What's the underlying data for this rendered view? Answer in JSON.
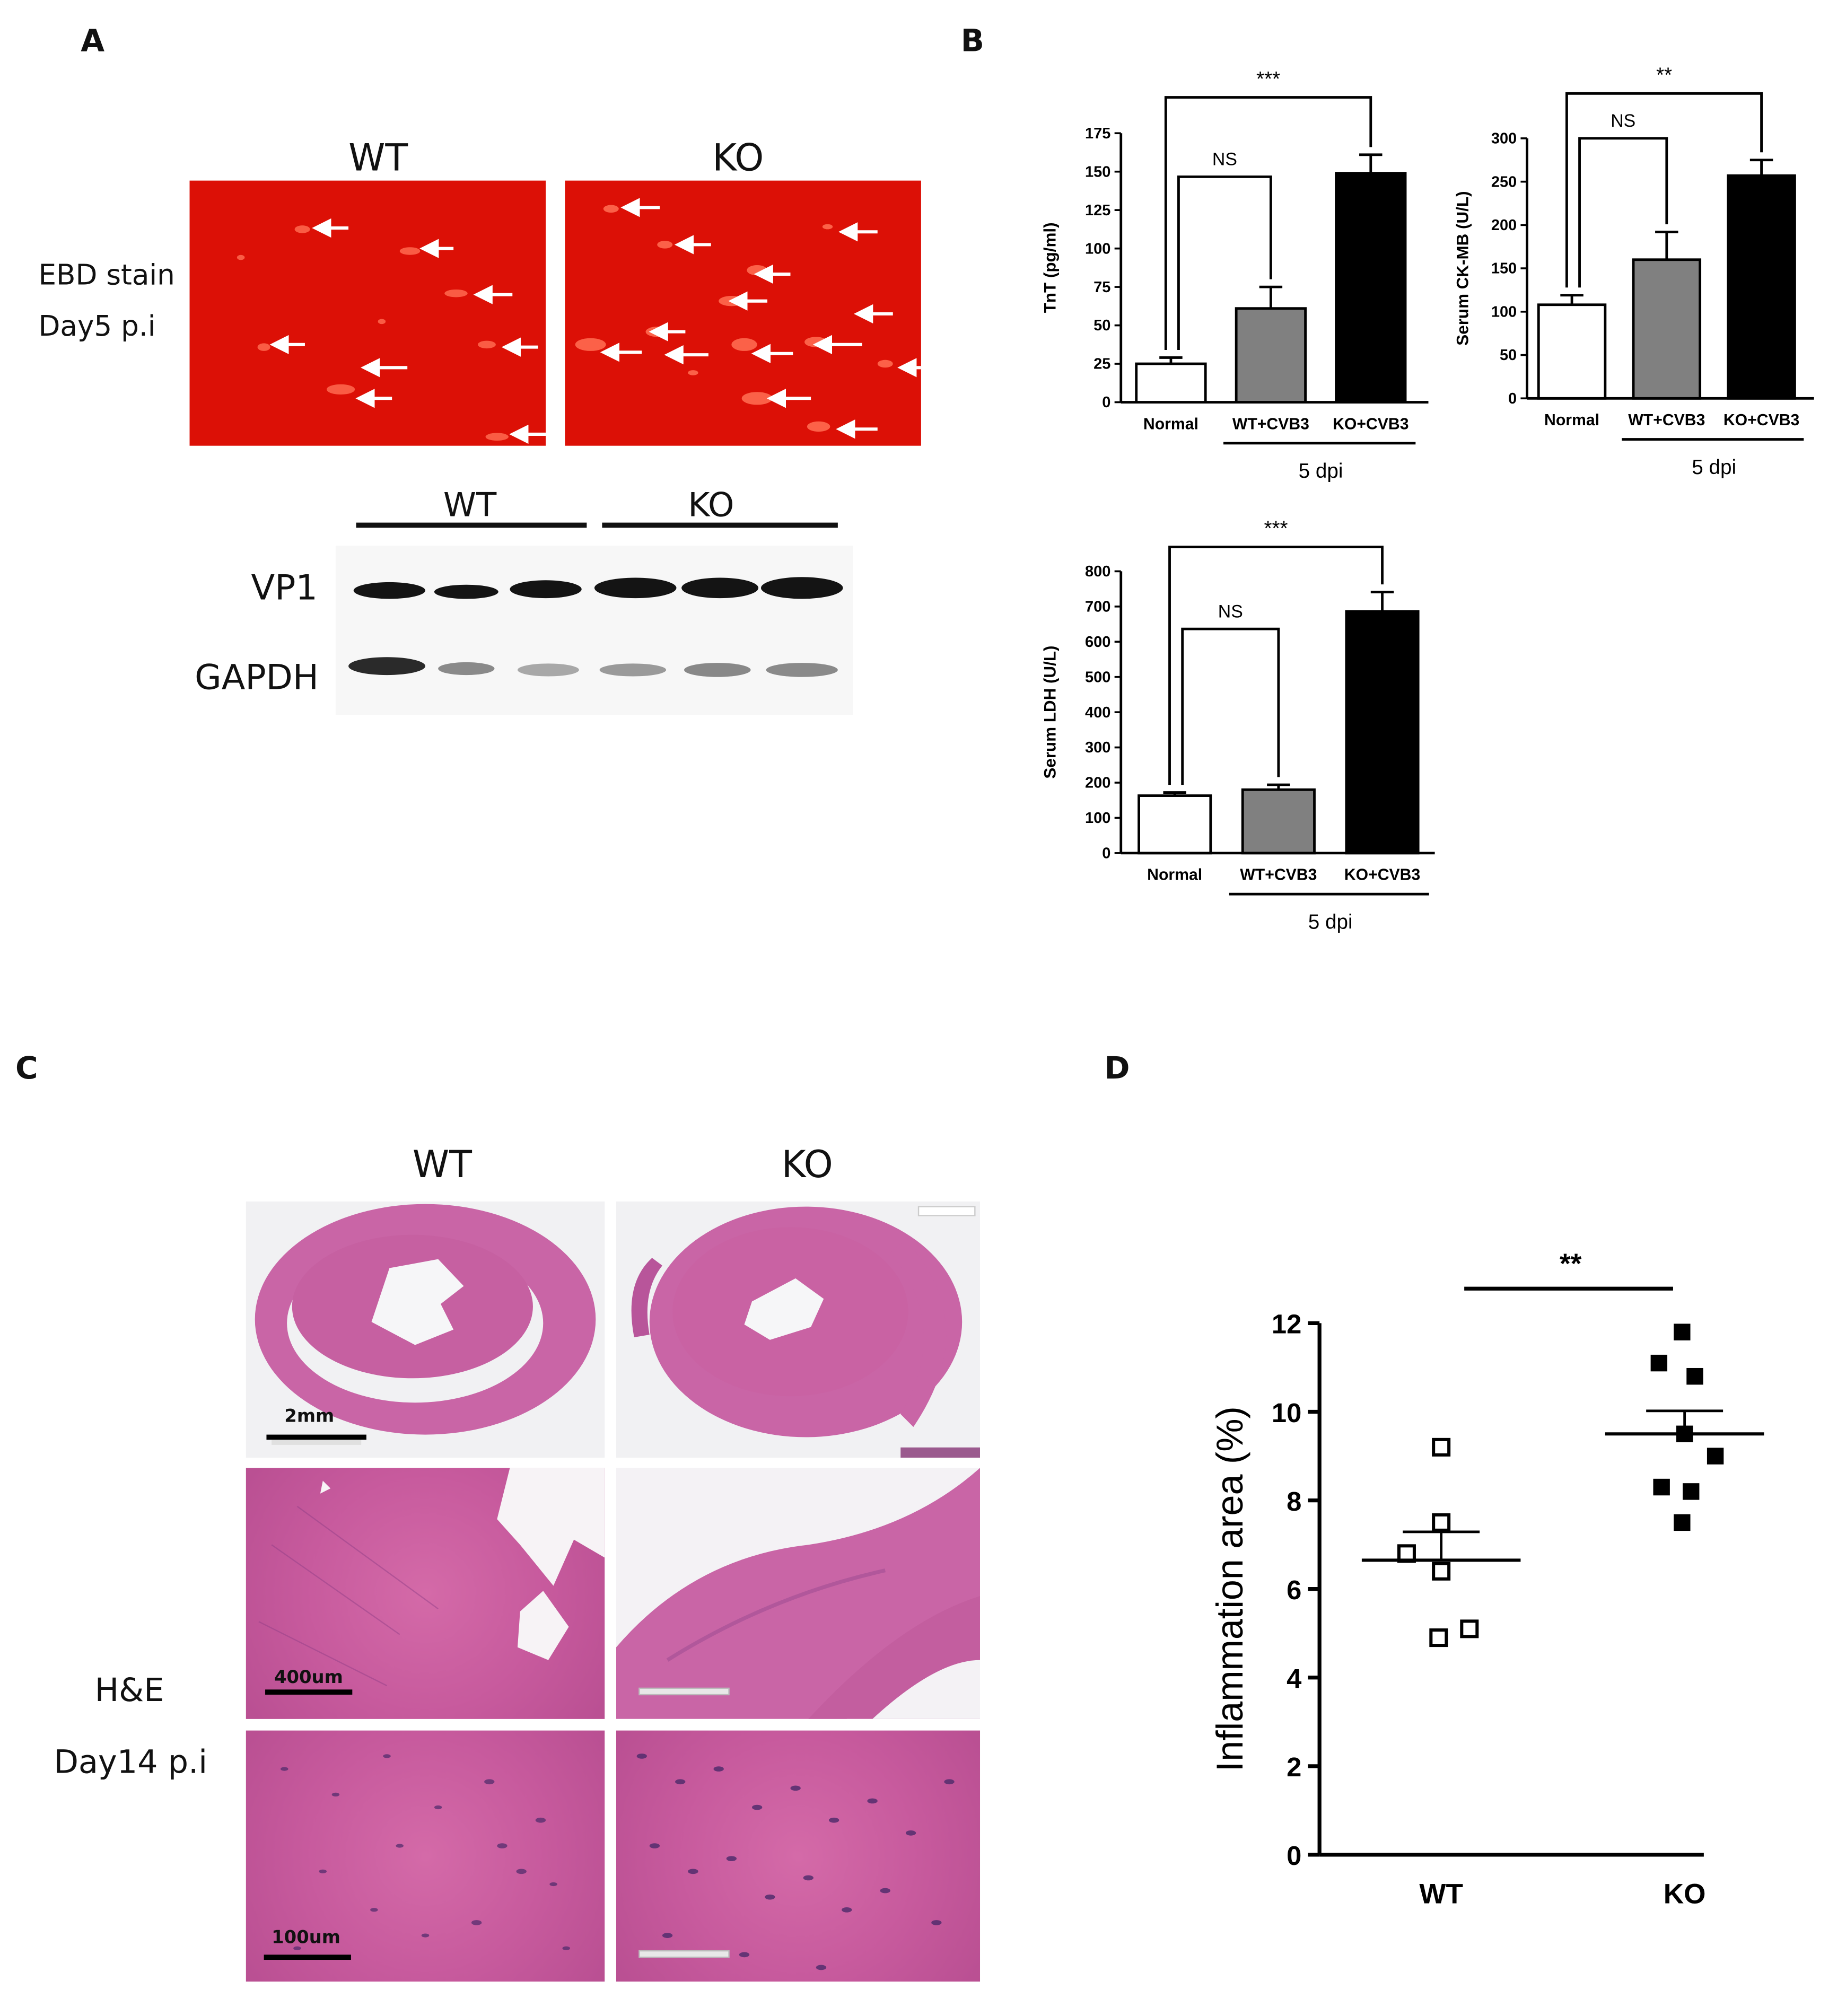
{
  "panels": {
    "a": "A",
    "b": "B",
    "c": "C",
    "d": "D"
  },
  "panel_a": {
    "col_wt": "WT",
    "col_ko": "KO",
    "stain_line1": "EBD stain",
    "stain_line2": "Day5 p.i",
    "blot_group_wt": "WT",
    "blot_group_ko": "KO",
    "blot_row1": "VP1",
    "blot_row2": "GAPDH"
  },
  "panel_c": {
    "col_wt": "WT",
    "col_ko": "KO",
    "stain_line1": "H&E",
    "stain_line2": "Day14 p.i",
    "scale_1": "2mm",
    "scale_2": "400um",
    "scale_3": "100um"
  },
  "chart_data": [
    {
      "type": "bar",
      "panel": "B",
      "ylabel": "TnT (pg/ml)",
      "categories": [
        "Normal",
        "WT+CVB3",
        "KO+CVB3"
      ],
      "values": [
        25,
        61,
        149
      ],
      "errors": [
        4,
        14,
        12
      ],
      "bar_colors": [
        "#ffffff",
        "#808080",
        "#000000"
      ],
      "ylim": [
        0,
        175
      ],
      "yticks": [
        "0",
        "25",
        "50",
        "75",
        "100",
        "125",
        "150",
        "175"
      ],
      "group_label": "5 dpi",
      "significance": [
        {
          "from": 0,
          "to": 1,
          "label": "NS"
        },
        {
          "from": 0,
          "to": 2,
          "label": "***"
        }
      ]
    },
    {
      "type": "bar",
      "panel": "B",
      "ylabel": "Serum CK-MB (U/L)",
      "categories": [
        "Normal",
        "WT+CVB3",
        "KO+CVB3"
      ],
      "values": [
        108,
        160,
        257
      ],
      "errors": [
        11,
        32,
        18
      ],
      "bar_colors": [
        "#ffffff",
        "#808080",
        "#000000"
      ],
      "ylim": [
        0,
        300
      ],
      "yticks": [
        "0",
        "50",
        "100",
        "150",
        "200",
        "250",
        "300"
      ],
      "group_label": "5 dpi",
      "significance": [
        {
          "from": 0,
          "to": 1,
          "label": "NS"
        },
        {
          "from": 0,
          "to": 2,
          "label": "**"
        }
      ]
    },
    {
      "type": "bar",
      "panel": "B",
      "ylabel": "Serum LDH (U/L)",
      "categories": [
        "Normal",
        "WT+CVB3",
        "KO+CVB3"
      ],
      "values": [
        163,
        180,
        686
      ],
      "errors": [
        9,
        14,
        55
      ],
      "bar_colors": [
        "#ffffff",
        "#808080",
        "#000000"
      ],
      "ylim": [
        0,
        800
      ],
      "yticks": [
        "0",
        "100",
        "200",
        "300",
        "400",
        "500",
        "600",
        "700",
        "800"
      ],
      "group_label": "5 dpi",
      "significance": [
        {
          "from": 0,
          "to": 1,
          "label": "NS"
        },
        {
          "from": 0,
          "to": 2,
          "label": "***"
        }
      ]
    },
    {
      "type": "scatter",
      "panel": "D",
      "ylabel": "Inflammation area (%)",
      "categories": [
        "WT",
        "KO"
      ],
      "ylim": [
        0,
        12
      ],
      "yticks": [
        "0",
        "2",
        "4",
        "6",
        "8",
        "10",
        "12"
      ],
      "series": [
        {
          "name": "WT",
          "values": [
            9.2,
            7.5,
            6.8,
            6.4,
            5.1,
            4.9
          ],
          "mean": 6.65,
          "sem": 0.64,
          "marker": "open-square"
        },
        {
          "name": "KO",
          "values": [
            11.8,
            11.1,
            10.8,
            9.5,
            9.0,
            8.3,
            8.2,
            7.5
          ],
          "mean": 9.5,
          "sem": 0.52,
          "marker": "filled-square"
        }
      ],
      "significance": [
        {
          "from": 0,
          "to": 1,
          "label": "**"
        }
      ]
    }
  ]
}
